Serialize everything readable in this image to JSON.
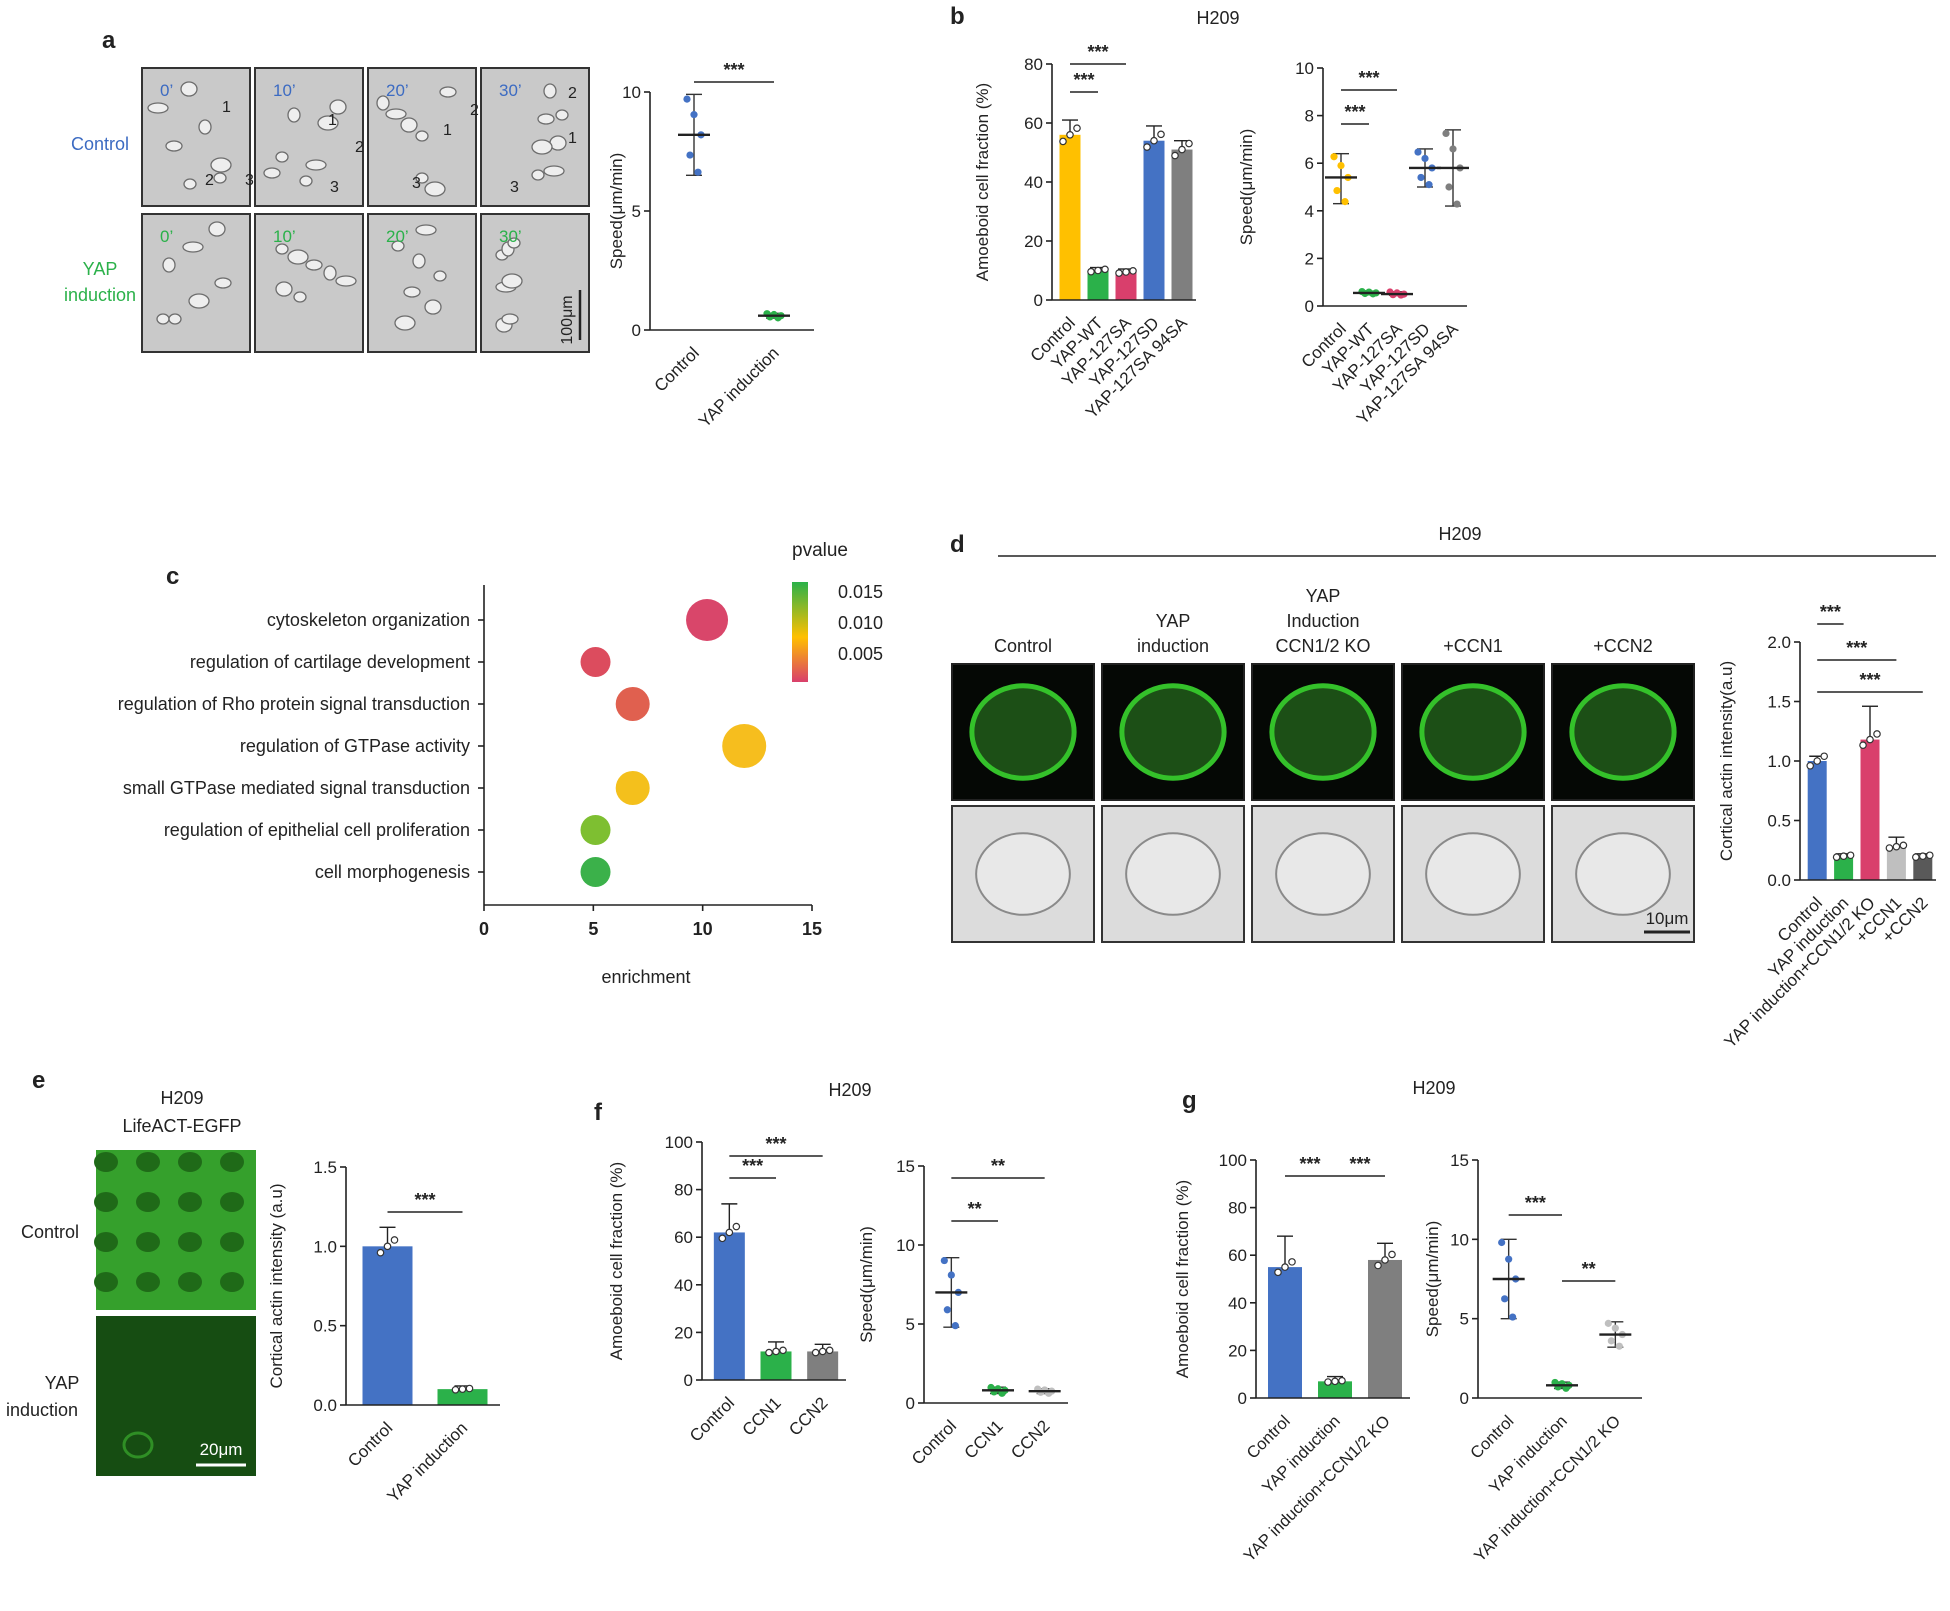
{
  "colors": {
    "blue": "#4472C4",
    "green": "#2BB14A",
    "yellow": "#FFC000",
    "pink": "#D93F6C",
    "gray": "#7F7F7F",
    "light": "#BFBFBF",
    "dark": "#595959"
  },
  "panels": {
    "a": {
      "label": "a",
      "times": [
        "0’",
        "10’",
        "20’",
        "30’"
      ],
      "rows": [
        "Control",
        "YAP",
        "induction"
      ],
      "cell_labels": [
        "1",
        "2",
        "3"
      ],
      "scale": "100μm",
      "chart": {
        "type": "scatter",
        "ylabel": "Speed(μm/min)",
        "ylim": [
          0,
          10
        ],
        "yticks": [
          0,
          5,
          10
        ],
        "categories": [
          "Control",
          "YAP induction"
        ],
        "sig": "***",
        "groups": [
          {
            "mean": 8.2,
            "lo": 6.5,
            "hi": 9.9,
            "color": "blue"
          },
          {
            "mean": 0.6,
            "lo": 0.5,
            "hi": 0.7,
            "color": "green"
          }
        ]
      }
    },
    "b": {
      "label": "b",
      "title": "H209",
      "categories": [
        "Control",
        "YAP-WT",
        "YAP-127SA",
        "YAP-127SD",
        "YAP-127SA 94SA"
      ],
      "bar": {
        "type": "bar",
        "ylabel": "Amoeboid cell fraction (%)",
        "ylim": [
          0,
          80
        ],
        "yticks": [
          0,
          20,
          40,
          60,
          80
        ],
        "groups": [
          {
            "value": 56,
            "err": 5,
            "color": "yellow"
          },
          {
            "value": 10,
            "err": 1,
            "color": "green"
          },
          {
            "value": 9.5,
            "err": 1,
            "color": "pink"
          },
          {
            "value": 54,
            "err": 5,
            "color": "blue"
          },
          {
            "value": 51,
            "err": 3,
            "color": "gray"
          }
        ],
        "sig": [
          "***",
          "***"
        ]
      },
      "scatter": {
        "type": "scatter",
        "ylabel": "Speed(μm/min)",
        "ylim": [
          0,
          10
        ],
        "yticks": [
          0,
          2,
          4,
          6,
          8,
          10
        ],
        "groups": [
          {
            "mean": 5.4,
            "lo": 4.3,
            "hi": 6.4,
            "color": "yellow"
          },
          {
            "mean": 0.55,
            "lo": 0.5,
            "hi": 0.62,
            "color": "green"
          },
          {
            "mean": 0.5,
            "lo": 0.45,
            "hi": 0.6,
            "color": "pink"
          },
          {
            "mean": 5.8,
            "lo": 5.0,
            "hi": 6.6,
            "color": "blue"
          },
          {
            "mean": 5.8,
            "lo": 4.2,
            "hi": 7.4,
            "color": "gray"
          }
        ],
        "sig": [
          "***",
          "***"
        ]
      }
    },
    "c": {
      "label": "c",
      "type": "scatter",
      "xlabel": "enrichment",
      "xlim": [
        0,
        15
      ],
      "xticks": [
        0,
        5,
        10,
        15
      ],
      "legend_title": "pvalue",
      "legend_ticks": [
        "0.015",
        "0.010",
        "0.005"
      ],
      "terms": [
        {
          "name": "cytoskeleton organization",
          "x": 10.2,
          "color": "#D9466A",
          "size": 21
        },
        {
          "name": "regulation of cartilage development",
          "x": 5.1,
          "color": "#DC4C5E",
          "size": 15
        },
        {
          "name": "regulation of Rho protein signal transduction",
          "x": 6.8,
          "color": "#E0604F",
          "size": 17
        },
        {
          "name": "regulation of GTPase activity",
          "x": 11.9,
          "color": "#F6BE1E",
          "size": 22
        },
        {
          "name": "small GTPase mediated signal transduction",
          "x": 6.8,
          "color": "#F4C01C",
          "size": 17
        },
        {
          "name": "regulation of epithelial cell proliferation",
          "x": 5.1,
          "color": "#7EBF31",
          "size": 15
        },
        {
          "name": "cell morphogenesis",
          "x": 5.1,
          "color": "#3BB14A",
          "size": 15
        }
      ]
    },
    "d": {
      "label": "d",
      "title": "H209",
      "columns": [
        [
          "Control"
        ],
        [
          "YAP",
          "induction"
        ],
        [
          "YAP",
          "Induction",
          "CCN1/2 KO"
        ],
        [
          "+CCN1"
        ],
        [
          "+CCN2"
        ]
      ],
      "scale": "10μm",
      "chart": {
        "type": "bar",
        "ylabel": "Cortical actin intensity(a.u)",
        "ylim": [
          0,
          2
        ],
        "yticks": [
          "0.0",
          "0.5",
          "1.0",
          "1.5",
          "2.0"
        ],
        "categories": [
          "Control",
          "YAP induction",
          "YAP induction+CCN1/2 KO",
          "+CCN1",
          "+CCN2"
        ],
        "groups": [
          {
            "value": 1.0,
            "err": 0.04,
            "color": "blue"
          },
          {
            "value": 0.2,
            "err": 0.02,
            "color": "green"
          },
          {
            "value": 1.18,
            "err": 0.28,
            "color": "pink"
          },
          {
            "value": 0.28,
            "err": 0.08,
            "color": "light"
          },
          {
            "value": 0.2,
            "err": 0.02,
            "color": "dark"
          }
        ],
        "sig": [
          "***",
          "***",
          "***"
        ]
      }
    },
    "e": {
      "label": "e",
      "title": [
        "H209",
        "LifeACT-EGFP"
      ],
      "rows": [
        "Control",
        "YAP",
        "induction"
      ],
      "scale": "20μm",
      "chart": {
        "type": "bar",
        "ylabel": "Cortical actin intensity (a.u)",
        "ylim": [
          0,
          1.5
        ],
        "yticks": [
          "0.0",
          "0.5",
          "1.0",
          "1.5"
        ],
        "categories": [
          "Control",
          "YAP induction"
        ],
        "groups": [
          {
            "value": 1.0,
            "err": 0.12,
            "color": "blue"
          },
          {
            "value": 0.1,
            "err": 0.02,
            "color": "green"
          }
        ],
        "sig": [
          "***"
        ]
      }
    },
    "f": {
      "label": "f",
      "title": "H209",
      "categories": [
        "Control",
        "CCN1",
        "CCN2"
      ],
      "bar": {
        "type": "bar",
        "ylabel": "Amoeboid cell fraction (%)",
        "ylim": [
          0,
          100
        ],
        "yticks": [
          0,
          20,
          40,
          60,
          80,
          100
        ],
        "groups": [
          {
            "value": 62,
            "err": 12,
            "color": "blue"
          },
          {
            "value": 12,
            "err": 4,
            "color": "green"
          },
          {
            "value": 12,
            "err": 3,
            "color": "gray"
          }
        ],
        "sig": [
          "***",
          "***"
        ]
      },
      "scatter": {
        "type": "scatter",
        "ylabel": "Speed(μm/min)",
        "ylim": [
          0,
          15
        ],
        "yticks": [
          0,
          5,
          10,
          15
        ],
        "groups": [
          {
            "mean": 7.0,
            "lo": 4.8,
            "hi": 9.2,
            "color": "blue"
          },
          {
            "mean": 0.8,
            "lo": 0.6,
            "hi": 1.0,
            "color": "green"
          },
          {
            "mean": 0.75,
            "lo": 0.6,
            "hi": 0.9,
            "color": "light"
          }
        ],
        "sig": [
          "**",
          "**"
        ]
      }
    },
    "g": {
      "label": "g",
      "title": "H209",
      "categories": [
        "Control",
        "YAP induction",
        "YAP induction+CCN1/2 KO"
      ],
      "bar": {
        "type": "bar",
        "ylabel": "Amoeboid cell fraction (%)",
        "ylim": [
          0,
          100
        ],
        "yticks": [
          0,
          20,
          40,
          60,
          80,
          100
        ],
        "groups": [
          {
            "value": 55,
            "err": 13,
            "color": "blue"
          },
          {
            "value": 7,
            "err": 2,
            "color": "green"
          },
          {
            "value": 58,
            "err": 7,
            "color": "gray"
          }
        ],
        "sig": [
          "***",
          "***"
        ]
      },
      "scatter": {
        "type": "scatter",
        "ylabel": "Speed(μm/min)",
        "ylim": [
          0,
          15
        ],
        "yticks": [
          0,
          5,
          10,
          15
        ],
        "groups": [
          {
            "mean": 7.5,
            "lo": 5.0,
            "hi": 10.0,
            "color": "blue"
          },
          {
            "mean": 0.8,
            "lo": 0.6,
            "hi": 1.0,
            "color": "green"
          },
          {
            "mean": 4.0,
            "lo": 3.2,
            "hi": 4.8,
            "color": "light"
          }
        ],
        "sig": [
          "***",
          "**"
        ]
      }
    }
  }
}
